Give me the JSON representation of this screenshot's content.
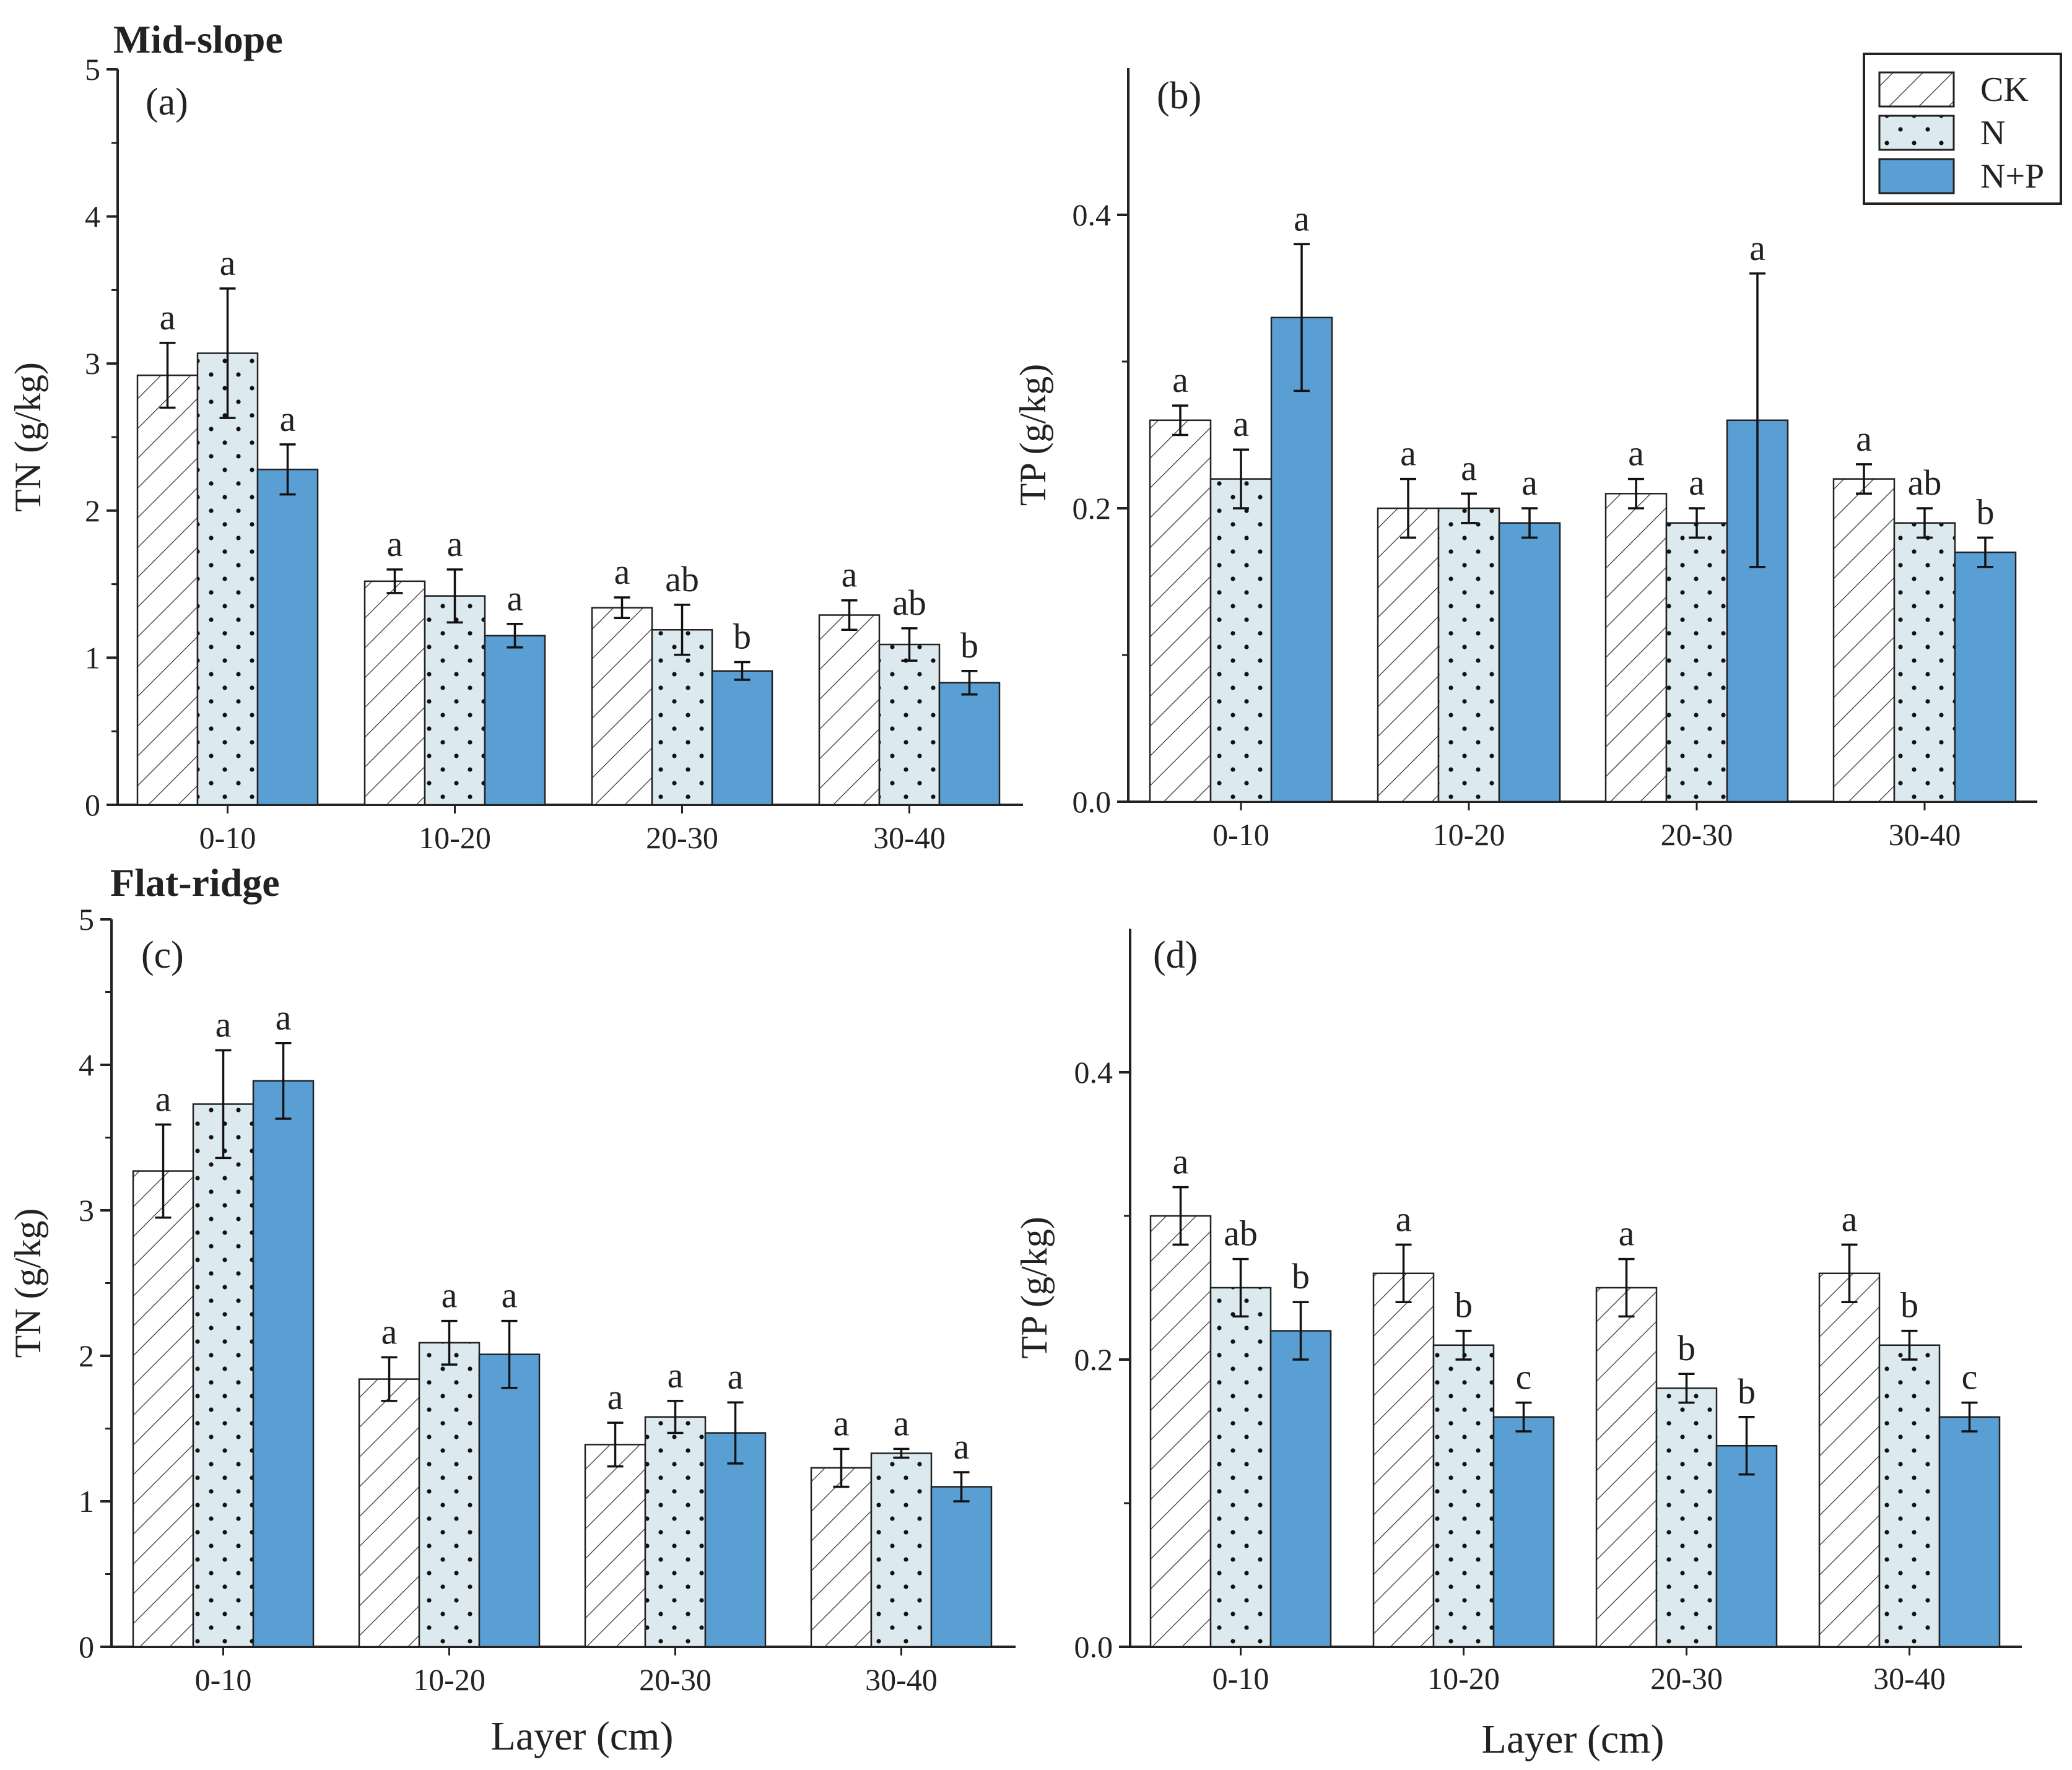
{
  "colors": {
    "ck_fill": "#ffffff",
    "n_fill": "#dce9ef",
    "np_fill": "#5a9fd4",
    "axis": "#222222"
  },
  "legend": [
    "CK",
    "N",
    "N+P"
  ],
  "sections": {
    "top": "Mid-slope",
    "bottom": "Flat-ridge"
  },
  "x_axis_title": "Layer (cm)",
  "chart_data": [
    {
      "type": "bar",
      "panel": "(a)",
      "section": "Mid-slope",
      "ylabel": "TN (g/kg)",
      "xlabel": "",
      "categories": [
        "0-10",
        "10-20",
        "20-30",
        "30-40"
      ],
      "ylim": [
        0,
        5
      ],
      "yticks": [
        "0",
        "1",
        "2",
        "3",
        "4",
        "5"
      ],
      "series": [
        {
          "name": "CK",
          "values": [
            2.92,
            1.52,
            1.34,
            1.29
          ],
          "errors": [
            0.22,
            0.08,
            0.07,
            0.1
          ],
          "labels": [
            "a",
            "a",
            "a",
            "a"
          ]
        },
        {
          "name": "N",
          "values": [
            3.07,
            1.42,
            1.19,
            1.09
          ],
          "errors": [
            0.44,
            0.18,
            0.17,
            0.11
          ],
          "labels": [
            "a",
            "a",
            "ab",
            "ab"
          ]
        },
        {
          "name": "N+P",
          "values": [
            2.28,
            1.15,
            0.91,
            0.83
          ],
          "errors": [
            0.17,
            0.08,
            0.06,
            0.08
          ],
          "labels": [
            "a",
            "a",
            "b",
            "b"
          ]
        }
      ]
    },
    {
      "type": "bar",
      "panel": "(b)",
      "section": "Mid-slope",
      "ylabel": "TP (g/kg)",
      "xlabel": "",
      "categories": [
        "0-10",
        "10-20",
        "20-30",
        "30-40"
      ],
      "ylim": [
        0,
        0.5
      ],
      "yticks": [
        "0.0",
        "0.2",
        "0.4"
      ],
      "series": [
        {
          "name": "CK",
          "values": [
            0.26,
            0.2,
            0.21,
            0.22
          ],
          "errors": [
            0.01,
            0.02,
            0.01,
            0.01
          ],
          "labels": [
            "a",
            "a",
            "a",
            "a"
          ]
        },
        {
          "name": "N",
          "values": [
            0.22,
            0.2,
            0.19,
            0.19
          ],
          "errors": [
            0.02,
            0.01,
            0.01,
            0.01
          ],
          "labels": [
            "a",
            "a",
            "a",
            "ab"
          ]
        },
        {
          "name": "N+P",
          "values": [
            0.33,
            0.19,
            0.26,
            0.17
          ],
          "errors": [
            0.05,
            0.01,
            0.1,
            0.01
          ],
          "labels": [
            "a",
            "a",
            "a",
            "b"
          ]
        }
      ]
    },
    {
      "type": "bar",
      "panel": "(c)",
      "section": "Flat-ridge",
      "ylabel": "TN (g/kg)",
      "xlabel": "Layer (cm)",
      "categories": [
        "0-10",
        "10-20",
        "20-30",
        "30-40"
      ],
      "ylim": [
        0,
        5
      ],
      "yticks": [
        "0",
        "1",
        "2",
        "3",
        "4",
        "5"
      ],
      "series": [
        {
          "name": "CK",
          "values": [
            3.27,
            1.84,
            1.39,
            1.23
          ],
          "errors": [
            0.32,
            0.15,
            0.15,
            0.13
          ],
          "labels": [
            "a",
            "a",
            "a",
            "a"
          ]
        },
        {
          "name": "N",
          "values": [
            3.73,
            2.09,
            1.58,
            1.33
          ],
          "errors": [
            0.37,
            0.15,
            0.11,
            0.03
          ],
          "labels": [
            "a",
            "a",
            "a",
            "a"
          ]
        },
        {
          "name": "N+P",
          "values": [
            3.89,
            2.01,
            1.47,
            1.1
          ],
          "errors": [
            0.26,
            0.23,
            0.21,
            0.1
          ],
          "labels": [
            "a",
            "a",
            "a",
            "a"
          ]
        }
      ]
    },
    {
      "type": "bar",
      "panel": "(d)",
      "section": "Flat-ridge",
      "ylabel": "TP (g/kg)",
      "xlabel": "Layer (cm)",
      "categories": [
        "0-10",
        "10-20",
        "20-30",
        "30-40"
      ],
      "ylim": [
        0,
        0.5
      ],
      "yticks": [
        "0.0",
        "0.2",
        "0.4"
      ],
      "series": [
        {
          "name": "CK",
          "values": [
            0.3,
            0.26,
            0.25,
            0.26
          ],
          "errors": [
            0.02,
            0.02,
            0.02,
            0.02
          ],
          "labels": [
            "a",
            "a",
            "a",
            "a"
          ]
        },
        {
          "name": "N",
          "values": [
            0.25,
            0.21,
            0.18,
            0.21
          ],
          "errors": [
            0.02,
            0.01,
            0.01,
            0.01
          ],
          "labels": [
            "ab",
            "b",
            "b",
            "b"
          ]
        },
        {
          "name": "N+P",
          "values": [
            0.22,
            0.16,
            0.14,
            0.16
          ],
          "errors": [
            0.02,
            0.01,
            0.02,
            0.01
          ],
          "labels": [
            "b",
            "c",
            "b",
            "c"
          ]
        }
      ]
    }
  ]
}
